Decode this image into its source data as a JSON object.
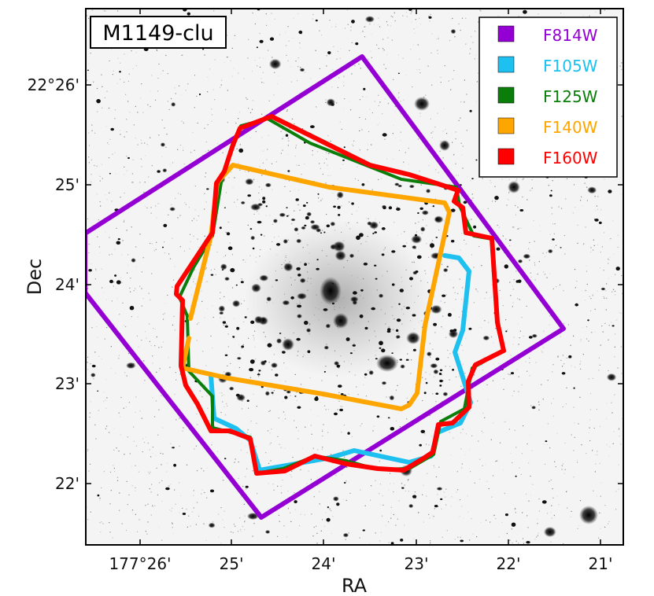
{
  "chart_data": {
    "type": "footprint-overlay",
    "title": "M1149-clu",
    "xlabel": "RA",
    "ylabel": "Dec",
    "x_ticks": [
      "177°26'",
      "25'",
      "24'",
      "23'",
      "22'",
      "21'"
    ],
    "y_ticks": [
      "22°26'",
      "25'",
      "24'",
      "23'",
      "22'"
    ],
    "legend_placement": "top-right",
    "grid": false,
    "series": [
      {
        "name": "F814W",
        "color": "#9400d3"
      },
      {
        "name": "F105W",
        "color": "#1ec0f0"
      },
      {
        "name": "F125W",
        "color": "#0a7d0a"
      },
      {
        "name": "F140W",
        "color": "#ffa500"
      },
      {
        "name": "F160W",
        "color": "#ff0000"
      }
    ]
  }
}
